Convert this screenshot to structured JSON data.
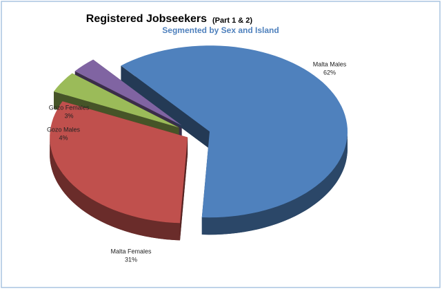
{
  "chart_data": {
    "type": "pie",
    "title": "Registered Jobseekers",
    "title_note": "(Part 1 & 2)",
    "subtitle": "Segmented by Sex and Island",
    "categories": [
      "Malta Males",
      "Malta Females",
      "Gozo Males",
      "Gozo Females"
    ],
    "values": [
      62,
      31,
      4,
      3
    ],
    "value_labels": [
      "62%",
      "31%",
      "4%",
      "3%"
    ],
    "colors": [
      "#4f81bd",
      "#c0504d",
      "#9bbb59",
      "#8064a2"
    ]
  }
}
